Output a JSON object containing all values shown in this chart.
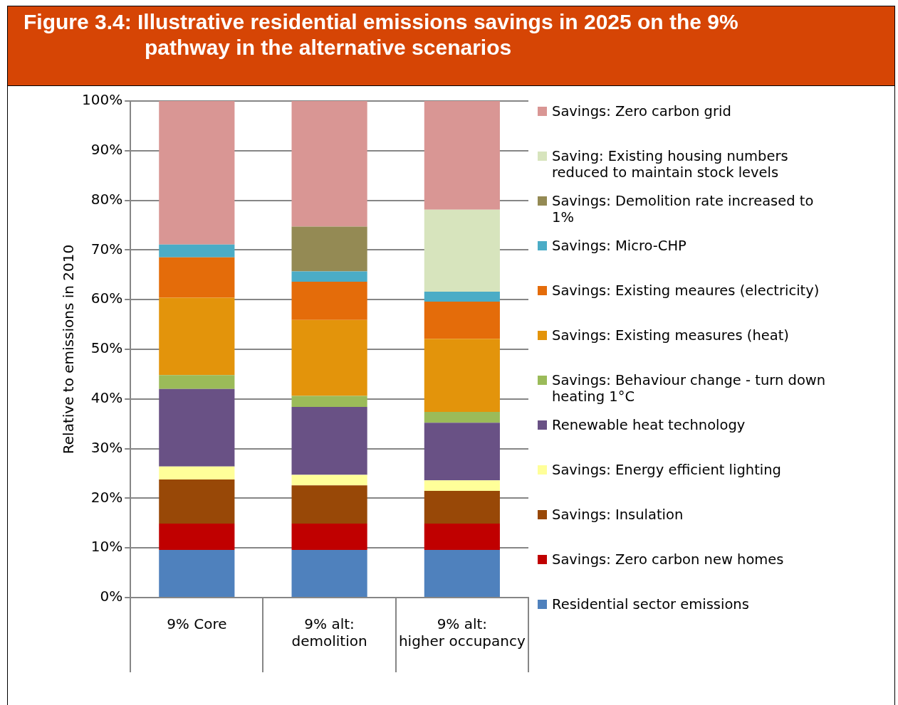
{
  "chart_data": {
    "type": "bar",
    "stacked": true,
    "title": "Figure 3.4: Illustrative residential emissions savings in 2025 on the 9% pathway in the alternative scenarios",
    "ylabel": "Relative to emissions in 2010",
    "categories": [
      "9% Core",
      "9% alt: demolition",
      "9% alt:  higher occupancy"
    ],
    "series": [
      {
        "name": "Residential sector emissions",
        "color": "#4f81bd",
        "values": [
          9.6,
          9.6,
          9.6
        ]
      },
      {
        "name": "Savings: Zero carbon new homes",
        "color": "#c00000",
        "values": [
          5.3,
          5.3,
          5.3
        ]
      },
      {
        "name": "Savings: Insulation",
        "color": "#984807",
        "values": [
          8.9,
          7.7,
          6.6
        ]
      },
      {
        "name": "Savings: Energy efficient lighting",
        "color": "#ffff99",
        "values": [
          2.6,
          2.1,
          2.1
        ]
      },
      {
        "name": "Renewable heat technology",
        "color": "#695185",
        "values": [
          15.6,
          13.7,
          11.6
        ]
      },
      {
        "name": "Savings: Behaviour change - turn down heating 1°C",
        "color": "#9bbb59",
        "values": [
          2.8,
          2.2,
          2.2
        ]
      },
      {
        "name": "Savings: Existing measures (heat)",
        "color": "#e3940b",
        "values": [
          15.6,
          15.3,
          14.7
        ]
      },
      {
        "name": "Savings: Existing meaures (electricity)",
        "color": "#e46c0a",
        "values": [
          8.1,
          7.7,
          7.5
        ]
      },
      {
        "name": "Savings: Micro-CHP",
        "color": "#4bacc6",
        "values": [
          2.6,
          2.1,
          2.0
        ]
      },
      {
        "name": "Savings: Demolition rate increased to 1%",
        "color": "#948a54",
        "values": [
          null,
          9.0,
          null
        ]
      },
      {
        "name": "Saving: Existing housing numbers reduced to maintain stock levels",
        "color": "#d7e4bd",
        "values": [
          null,
          null,
          16.5
        ]
      },
      {
        "name": "Savings: Zero carbon grid",
        "color": "#d99694",
        "values": [
          28.9,
          25.3,
          21.9
        ]
      }
    ],
    "ylim": [
      0,
      100
    ],
    "yticks": [
      {
        "value": 0,
        "label": "0%"
      },
      {
        "value": 10,
        "label": "10%"
      },
      {
        "value": 20,
        "label": "20%"
      },
      {
        "value": 30,
        "label": "30%"
      },
      {
        "value": 40,
        "label": "40%"
      },
      {
        "value": 50,
        "label": "50%"
      },
      {
        "value": 60,
        "label": "60%"
      },
      {
        "value": 70,
        "label": "70%"
      },
      {
        "value": 80,
        "label": "80%"
      },
      {
        "value": 90,
        "label": "90%"
      },
      {
        "value": 100,
        "label": "100%"
      }
    ],
    "grid": "y",
    "legend": "right"
  }
}
